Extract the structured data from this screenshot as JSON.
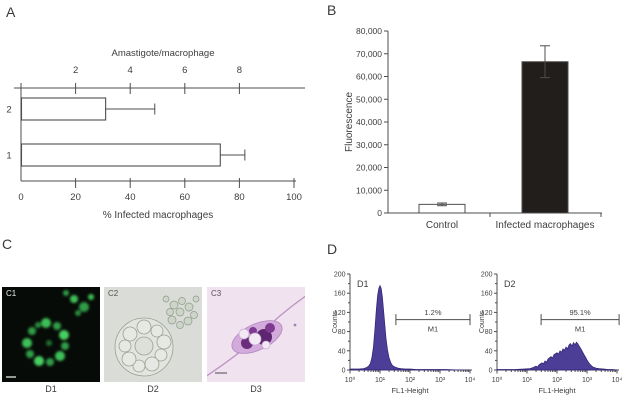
{
  "panel_a": {
    "label": "A",
    "top_axis_label": "Amastigote/macrophage",
    "bottom_axis_label": "% Infected macrophages"
  },
  "panel_b": {
    "label": "B",
    "ylabel": "Fluorescence"
  },
  "panel_c": {
    "label": "C",
    "images": [
      {
        "tag": "C1",
        "caption": "D1"
      },
      {
        "tag": "C2",
        "caption": "D2"
      },
      {
        "tag": "C3",
        "caption": "D3"
      }
    ]
  },
  "panel_d": {
    "label": "D"
  },
  "chart_data": [
    {
      "id": "A",
      "type": "bar",
      "orientation": "horizontal",
      "top_axis": {
        "label": "Amastigote/macrophage",
        "tick_labels": [
          "2",
          "4",
          "6",
          "8"
        ],
        "tick_positions_percent": [
          20,
          40,
          60,
          80
        ],
        "range": [
          0,
          10
        ]
      },
      "bottom_axis": {
        "label": "% Infected macrophages",
        "tick_labels": [
          "0",
          "20",
          "40",
          "60",
          "80",
          "100"
        ],
        "tick_values": [
          0,
          20,
          40,
          60,
          80,
          100
        ],
        "range": [
          0,
          100
        ]
      },
      "categories": [
        "2",
        "1"
      ],
      "values_percent": [
        31,
        73
      ],
      "errors_percent": [
        18,
        9
      ],
      "bar_fill": "#ffffff",
      "bar_stroke": "#4f4f4f"
    },
    {
      "id": "B",
      "type": "bar",
      "ylabel": "Fluorescence",
      "ylim": [
        0,
        80000
      ],
      "ytick_values": [
        0,
        10000,
        20000,
        30000,
        40000,
        50000,
        60000,
        70000,
        80000
      ],
      "ytick_labels": [
        "0",
        "10,000",
        "20,000",
        "30,000",
        "40,000",
        "50,000",
        "60,000",
        "70,000",
        "80,000"
      ],
      "categories": [
        "Control",
        "Infected macrophages"
      ],
      "values": [
        3800,
        66500
      ],
      "errors": [
        600,
        7000
      ],
      "bar_colors": [
        "#ffffff",
        "#221e1b"
      ],
      "bar_stroke": "#4f4f4f"
    },
    {
      "id": "D1",
      "type": "area",
      "tag": "D1",
      "xlabel": "FL1-Height",
      "ylabel": "Counts",
      "ylim": [
        0,
        200
      ],
      "ytick_values": [
        0,
        40,
        80,
        120,
        160,
        200
      ],
      "ytick_labels": [
        "0",
        "40",
        "80",
        "120",
        "160",
        "200"
      ],
      "x_tick_labels": [
        "10⁰",
        "10¹",
        "10²",
        "10³",
        "10⁴"
      ],
      "xlim_log": [
        0,
        4
      ],
      "gate": {
        "label": "M1",
        "percent": "1.2%",
        "from_log": 1.53,
        "to_log": 4.0,
        "counts_level": 105
      },
      "fill": "#4c3d96",
      "stroke": "#2f2573",
      "points": [
        [
          0,
          2
        ],
        [
          0.3,
          2
        ],
        [
          0.45,
          3
        ],
        [
          0.55,
          5
        ],
        [
          0.62,
          8
        ],
        [
          0.68,
          14
        ],
        [
          0.73,
          26
        ],
        [
          0.78,
          48
        ],
        [
          0.83,
          85
        ],
        [
          0.88,
          128
        ],
        [
          0.92,
          155
        ],
        [
          0.96,
          170
        ],
        [
          1.0,
          176
        ],
        [
          1.04,
          170
        ],
        [
          1.08,
          152
        ],
        [
          1.12,
          124
        ],
        [
          1.16,
          95
        ],
        [
          1.2,
          66
        ],
        [
          1.25,
          42
        ],
        [
          1.3,
          26
        ],
        [
          1.36,
          15
        ],
        [
          1.42,
          9
        ],
        [
          1.5,
          6
        ],
        [
          1.6,
          4
        ],
        [
          1.7,
          3
        ],
        [
          1.85,
          2
        ],
        [
          2.0,
          2
        ],
        [
          2.2,
          1
        ],
        [
          2.5,
          1
        ],
        [
          2.8,
          1
        ],
        [
          3.2,
          1
        ],
        [
          3.6,
          0
        ],
        [
          4,
          0
        ]
      ]
    },
    {
      "id": "D2",
      "type": "area",
      "tag": "D2",
      "xlabel": "FL1-Height",
      "ylabel": "Counts",
      "ylim": [
        0,
        200
      ],
      "ytick_values": [
        0,
        40,
        80,
        120,
        160,
        200
      ],
      "ytick_labels": [
        "0",
        "40",
        "80",
        "120",
        "160",
        "200"
      ],
      "x_tick_labels": [
        "10⁰",
        "10¹",
        "10²",
        "10³",
        "10⁴"
      ],
      "xlim_log": [
        0,
        4
      ],
      "gate": {
        "label": "M1",
        "percent": "95.1%",
        "from_log": 1.47,
        "to_log": 4.07,
        "counts_level": 105
      },
      "fill": "#4c3d96",
      "stroke": "#2f2573",
      "points": [
        [
          0,
          1
        ],
        [
          0.3,
          1
        ],
        [
          0.6,
          1
        ],
        [
          0.9,
          2
        ],
        [
          1.1,
          3
        ],
        [
          1.2,
          5
        ],
        [
          1.3,
          8
        ],
        [
          1.35,
          6
        ],
        [
          1.4,
          11
        ],
        [
          1.5,
          15
        ],
        [
          1.55,
          13
        ],
        [
          1.6,
          19
        ],
        [
          1.65,
          16
        ],
        [
          1.7,
          23
        ],
        [
          1.8,
          28
        ],
        [
          1.85,
          25
        ],
        [
          1.9,
          32
        ],
        [
          2.0,
          36
        ],
        [
          2.05,
          33
        ],
        [
          2.1,
          40
        ],
        [
          2.15,
          37
        ],
        [
          2.2,
          44
        ],
        [
          2.25,
          41
        ],
        [
          2.3,
          48
        ],
        [
          2.35,
          44
        ],
        [
          2.4,
          52
        ],
        [
          2.45,
          55
        ],
        [
          2.5,
          50
        ],
        [
          2.55,
          57
        ],
        [
          2.6,
          53
        ],
        [
          2.65,
          58
        ],
        [
          2.7,
          54
        ],
        [
          2.75,
          49
        ],
        [
          2.8,
          44
        ],
        [
          2.85,
          38
        ],
        [
          2.9,
          32
        ],
        [
          2.95,
          27
        ],
        [
          3.0,
          21
        ],
        [
          3.05,
          16
        ],
        [
          3.1,
          12
        ],
        [
          3.15,
          9
        ],
        [
          3.2,
          6
        ],
        [
          3.3,
          4
        ],
        [
          3.4,
          3
        ],
        [
          3.55,
          2
        ],
        [
          3.7,
          1
        ],
        [
          3.85,
          1
        ],
        [
          4,
          0
        ]
      ]
    }
  ]
}
